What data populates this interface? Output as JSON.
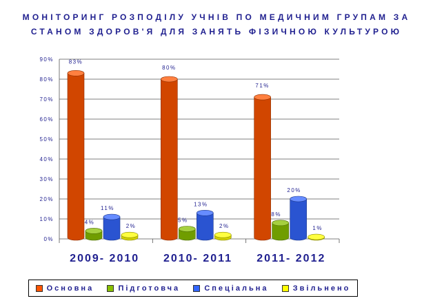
{
  "colors": {
    "title": "#1f1f8f",
    "axis_text": "#1f1f8f",
    "grid": "#555555",
    "category_text": "#1f1f8f",
    "series": [
      "#ff5500",
      "#88c000",
      "#3366ff",
      "#ffff00"
    ]
  },
  "chart_data": {
    "type": "bar",
    "title_lines": [
      "МОНІТОРИНГ РОЗПОДІЛУ УЧНІВ ПО МЕДИЧНИМ ГРУПАМ ЗА",
      "СТАНОМ ЗДОРОВ'Я ДЛЯ ЗАНЯТЬ ФІЗИЧНОЮ КУЛЬТУРОЮ"
    ],
    "categories": [
      "2009- 2010",
      "2010- 2011",
      "2011- 2012"
    ],
    "y_ticks": [
      "0%",
      "10%",
      "20%",
      "30%",
      "40%",
      "50%",
      "60%",
      "70%",
      "80%",
      "90%"
    ],
    "ylim": [
      0,
      90
    ],
    "grid": true,
    "legend_position": "bottom",
    "series": [
      {
        "name": "Основна",
        "values": [
          83,
          80,
          71
        ],
        "labels": [
          "83%",
          "80%",
          "71%"
        ]
      },
      {
        "name": "Підготовча",
        "values": [
          4,
          5,
          8
        ],
        "labels": [
          "4%",
          "5%",
          "8%"
        ]
      },
      {
        "name": "Спеціальна",
        "values": [
          11,
          13,
          20
        ],
        "labels": [
          "11%",
          "13%",
          "20%"
        ]
      },
      {
        "name": "Звільнено",
        "values": [
          2,
          2,
          1
        ],
        "labels": [
          "2%",
          "2%",
          "1%"
        ]
      }
    ]
  }
}
